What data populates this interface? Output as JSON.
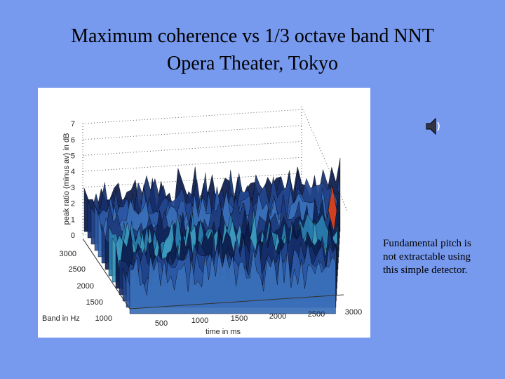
{
  "title": [
    "Maximum coherence vs 1/3 octave band NNT",
    "Opera Theater, Tokyo"
  ],
  "plot": {
    "z_label": "peak ratio (minus av) in dB",
    "z_ticks": [
      "0",
      "1",
      "2",
      "3",
      "4",
      "5",
      "6",
      "7"
    ],
    "band_label": "Band in Hz",
    "band_ticks": [
      "1000",
      "1500",
      "2000",
      "2500",
      "3000"
    ],
    "time_label": "time in ms",
    "time_ticks": [
      "500",
      "1000",
      "1500",
      "2000",
      "2500",
      "3000"
    ]
  },
  "caption": [
    "Fundamental pitch is",
    "not extractable using",
    "this simple detector."
  ]
}
